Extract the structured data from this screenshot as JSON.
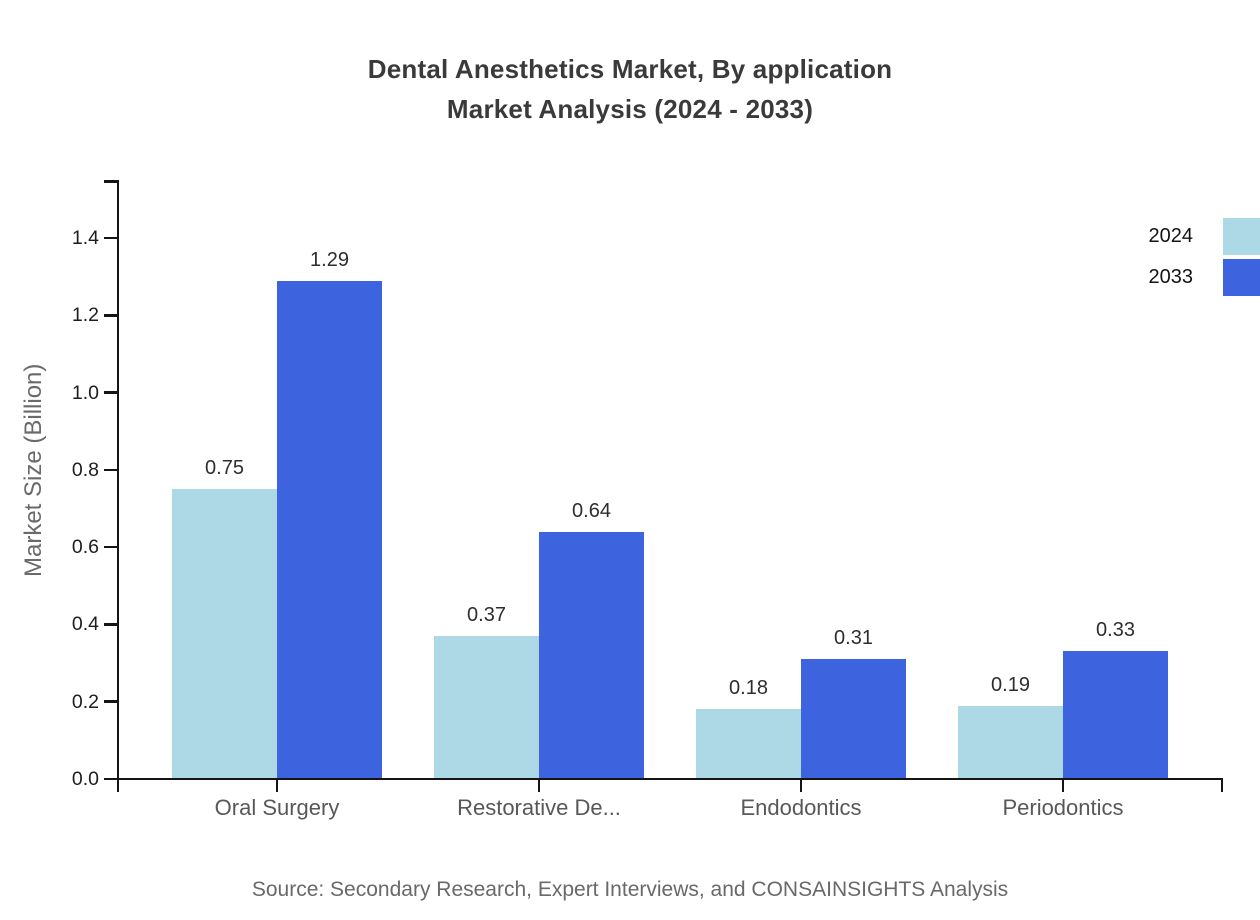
{
  "title": {
    "line1": "Dental Anesthetics Market, By application",
    "line2": "Market Analysis (2024 - 2033)"
  },
  "source": "Source: Secondary Research, Expert Interviews, and CONSAINSIGHTS Analysis",
  "chart_data": {
    "type": "bar",
    "title": "Dental Anesthetics Market, By application Market Analysis (2024 - 2033)",
    "categories": [
      "Oral Surgery",
      "Restorative De...",
      "Endodontics",
      "Periodontics"
    ],
    "series": [
      {
        "name": "2024",
        "color": "#ADD8E6",
        "values": [
          0.75,
          0.37,
          0.18,
          0.19
        ]
      },
      {
        "name": "2033",
        "color": "#3E63DE",
        "values": [
          1.29,
          0.64,
          0.31,
          0.33
        ]
      }
    ],
    "xlabel": "",
    "ylabel": "Market Size (Billion)",
    "yticks": [
      0.0,
      0.2,
      0.4,
      0.6,
      0.8,
      1.0,
      1.2,
      1.4
    ],
    "ylim": [
      0,
      1.55
    ],
    "grid": false,
    "legend_position": "top-right",
    "value_labels": true,
    "axis_color": "#151515"
  }
}
